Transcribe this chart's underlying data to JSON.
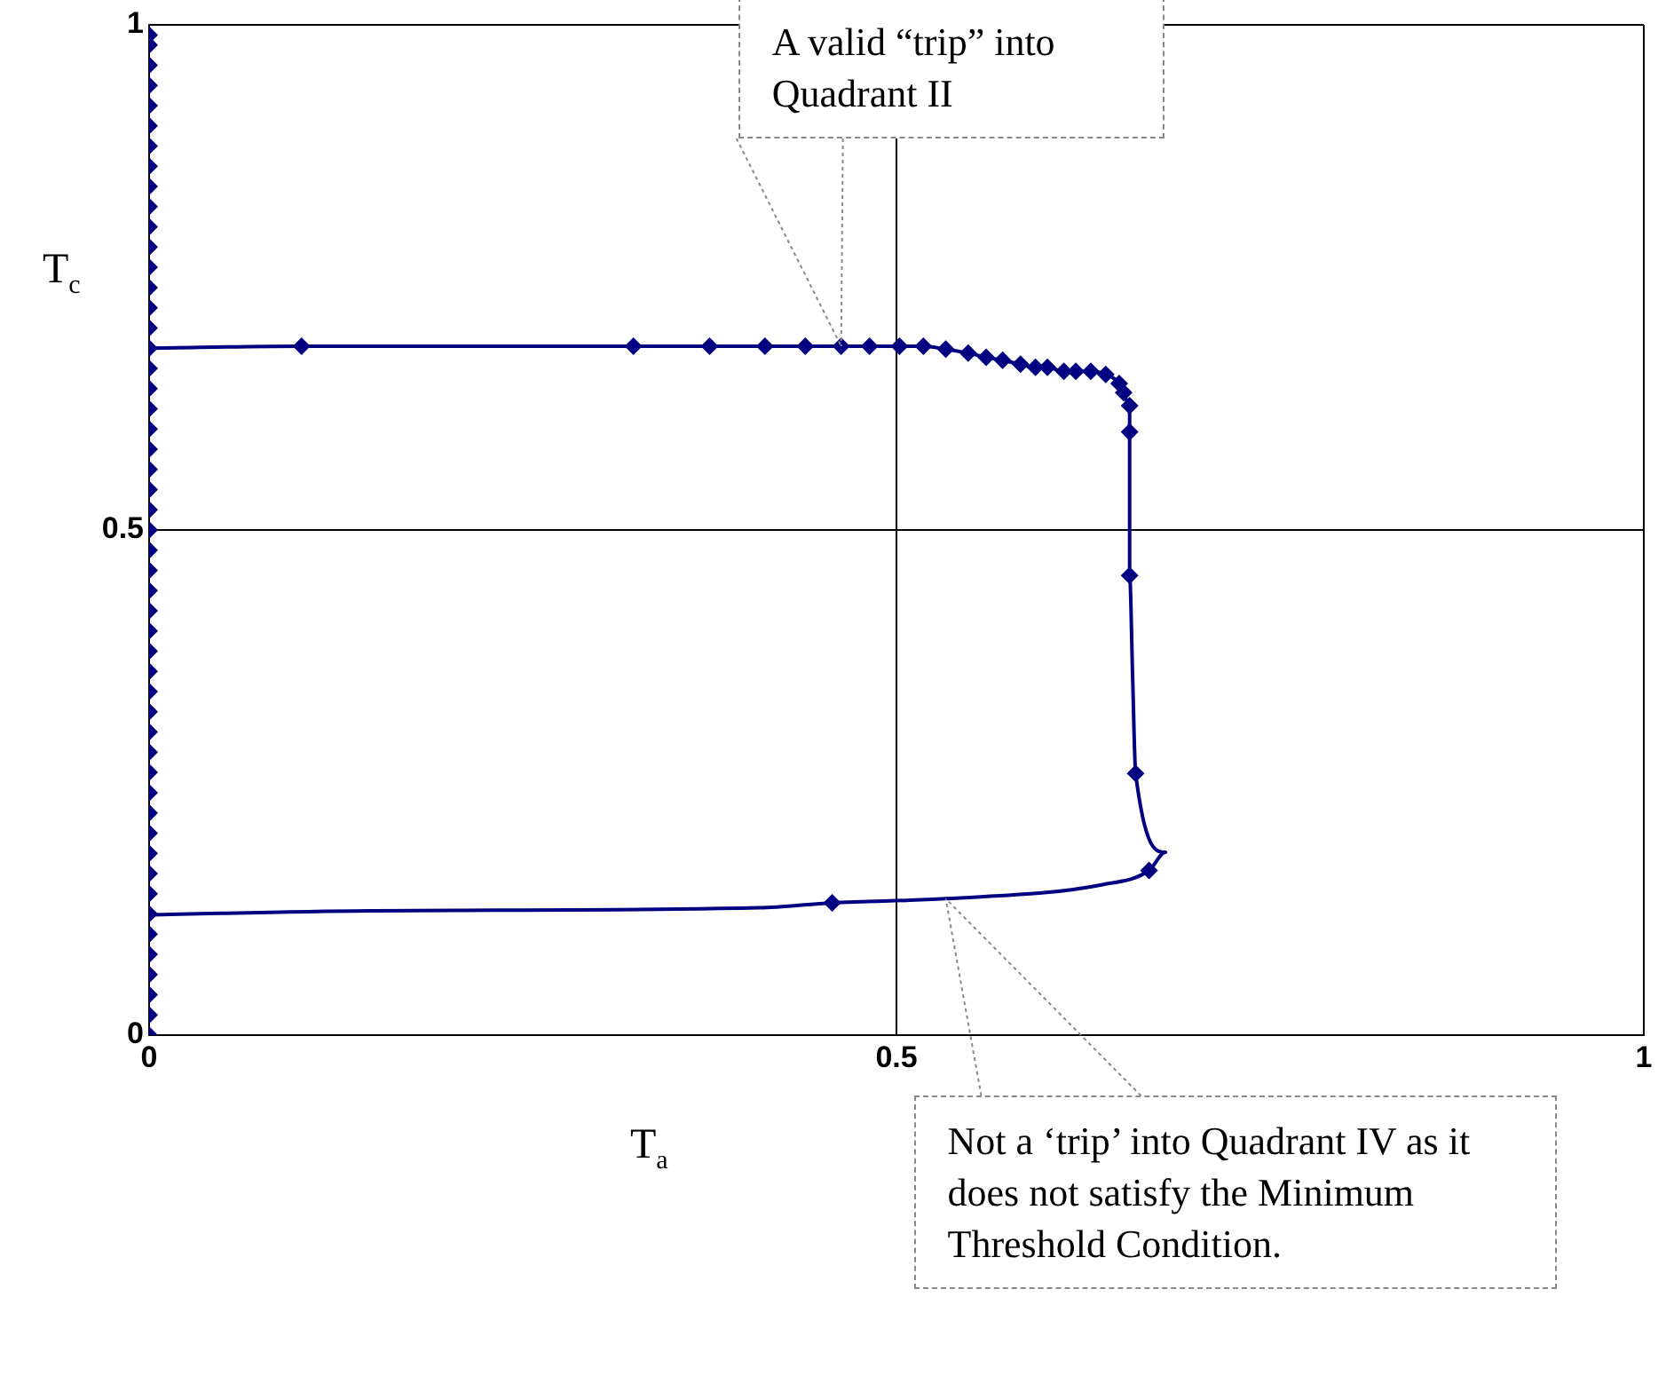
{
  "chart_data": {
    "type": "line",
    "xlabel": "T$_{a}$",
    "ylabel": "T$_{c}$",
    "xlim": [
      0,
      1
    ],
    "ylim": [
      0,
      1
    ],
    "xticks": [
      0,
      0.5,
      1
    ],
    "yticks": [
      0,
      0.5,
      1
    ],
    "grid": true,
    "legend": false,
    "annotations": [
      {
        "text": "A valid “trip” into Quadrant II",
        "x": 0.463,
        "y": 0.682
      },
      {
        "text": "Not a ‘trip’ into Quadrant IV as it does not satisfy the Minimum Threshold Condition.",
        "x": 0.533,
        "y": 0.135
      }
    ],
    "series": [
      {
        "color": "#000080",
        "marker": "none",
        "x": [
          0,
          0.102,
          0.324,
          0.375,
          0.412,
          0.439,
          0.463,
          0.482,
          0.502,
          0.518,
          0.533,
          0.548,
          0.56,
          0.571,
          0.583,
          0.593,
          0.601,
          0.612,
          0.62,
          0.63,
          0.64,
          0.649,
          0.652,
          0.656,
          0.656,
          0.656,
          0.658,
          0.66,
          0.68,
          0.669,
          0.638,
          0.533,
          0.457,
          0.408,
          0.146,
          0
        ],
        "values": [
          0.68,
          0.682,
          0.682,
          0.682,
          0.682,
          0.682,
          0.682,
          0.682,
          0.682,
          0.682,
          0.679,
          0.675,
          0.671,
          0.668,
          0.664,
          0.661,
          0.661,
          0.657,
          0.657,
          0.657,
          0.654,
          0.645,
          0.636,
          0.623,
          0.597,
          0.455,
          0.355,
          0.259,
          0.181,
          0.163,
          0.149,
          0.135,
          0.131,
          0.126,
          0.123,
          0.119
        ]
      },
      {
        "type": "scatter",
        "color": "#000080",
        "marker": "diamond",
        "x": [
          0.102,
          0.324,
          0.375,
          0.412,
          0.439,
          0.463,
          0.482,
          0.502,
          0.518,
          0.533,
          0.548,
          0.56,
          0.571,
          0.583,
          0.593,
          0.601,
          0.612,
          0.62,
          0.63,
          0.64,
          0.649,
          0.652,
          0.656,
          0.656,
          0.656,
          0.66,
          0.669,
          0.457
        ],
        "values": [
          0.682,
          0.682,
          0.682,
          0.682,
          0.682,
          0.682,
          0.682,
          0.682,
          0.682,
          0.679,
          0.675,
          0.671,
          0.668,
          0.664,
          0.661,
          0.661,
          0.657,
          0.657,
          0.657,
          0.654,
          0.645,
          0.636,
          0.623,
          0.597,
          0.455,
          0.259,
          0.163,
          0.131
        ]
      },
      {
        "type": "scatter",
        "color": "#000080",
        "marker": "diamond",
        "x": [
          0,
          0,
          0,
          0,
          0,
          0,
          0,
          0,
          0,
          0,
          0,
          0,
          0,
          0,
          0,
          0,
          0,
          0,
          0,
          0,
          0,
          0,
          0,
          0,
          0,
          0,
          0,
          0,
          0,
          0,
          0,
          0,
          0,
          0,
          0,
          0,
          0,
          0,
          0,
          0,
          0,
          0,
          0,
          0,
          0,
          0,
          0,
          0,
          0,
          0,
          0
        ],
        "values": [
          0,
          0.02,
          0.04,
          0.06,
          0.08,
          0.1,
          0.12,
          0.14,
          0.16,
          0.18,
          0.2,
          0.22,
          0.24,
          0.26,
          0.28,
          0.3,
          0.32,
          0.34,
          0.36,
          0.38,
          0.4,
          0.42,
          0.44,
          0.46,
          0.48,
          0.5,
          0.52,
          0.54,
          0.56,
          0.58,
          0.6,
          0.62,
          0.64,
          0.66,
          0.68,
          0.7,
          0.72,
          0.74,
          0.76,
          0.78,
          0.8,
          0.82,
          0.84,
          0.86,
          0.88,
          0.9,
          0.92,
          0.94,
          0.96,
          0.98,
          0.99
        ]
      }
    ]
  }
}
